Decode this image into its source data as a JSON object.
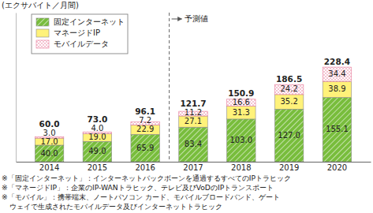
{
  "chart_data": {
    "type": "bar",
    "stacked": true,
    "data_labels": true,
    "ylabel": "(エクサバイト／月間)",
    "categories": [
      "2014",
      "2015",
      "2016",
      "2017",
      "2018",
      "2019",
      "2020"
    ],
    "series": [
      {
        "name": "固定インターネット",
        "color": "#78bd3c",
        "values": [
          40.0,
          49.0,
          65.9,
          83.4,
          103.0,
          127.0,
          155.1
        ],
        "value_labels": [
          "40.0",
          "49.0",
          "65.9",
          "83.4",
          "103.0",
          "127.0",
          "155.1"
        ]
      },
      {
        "name": "マネージドIP",
        "color": "#fff27a",
        "values": [
          17.0,
          19.0,
          22.9,
          27.1,
          31.3,
          35.2,
          38.9
        ],
        "value_labels": [
          "17.0",
          "19.0",
          "22.9",
          "27.1",
          "31.3",
          "35.2",
          "38.9"
        ]
      },
      {
        "name": "モバイルデータ",
        "color": "#e8799a",
        "values": [
          3.0,
          4.0,
          7.2,
          11.2,
          16.6,
          24.2,
          34.4
        ],
        "value_labels": [
          "3.0",
          "4.0",
          "7.2",
          "11.2",
          "16.6",
          "24.2",
          "34.4"
        ]
      }
    ],
    "totals": [
      60.0,
      73.0,
      96.1,
      121.7,
      150.9,
      186.5,
      228.4
    ],
    "total_labels": [
      "60.0",
      "73.0",
      "96.1",
      "121.7",
      "150.9",
      "186.5",
      "228.4"
    ],
    "annotations": [
      {
        "text": "予測値",
        "x": "2017"
      }
    ],
    "notes": [
      "※「固定インターネット」：インターネットバックボーンを通過するすべてのIPトラヒック",
      "※「マネージドIP」：企業のIP-WANトラヒック、テレビ及びVoDのIPトランスポート",
      "※「モバイル」：携帯端末、ノートパソコン カード、モバイルブロードバンド、ゲート",
      "ウェイで生成されたモバイルデータ及びインターネットトラヒック"
    ],
    "ylim": [
      0,
      360
    ],
    "yticks": [],
    "tick_labels": "x",
    "legend": "upper left",
    "grid": false
  }
}
